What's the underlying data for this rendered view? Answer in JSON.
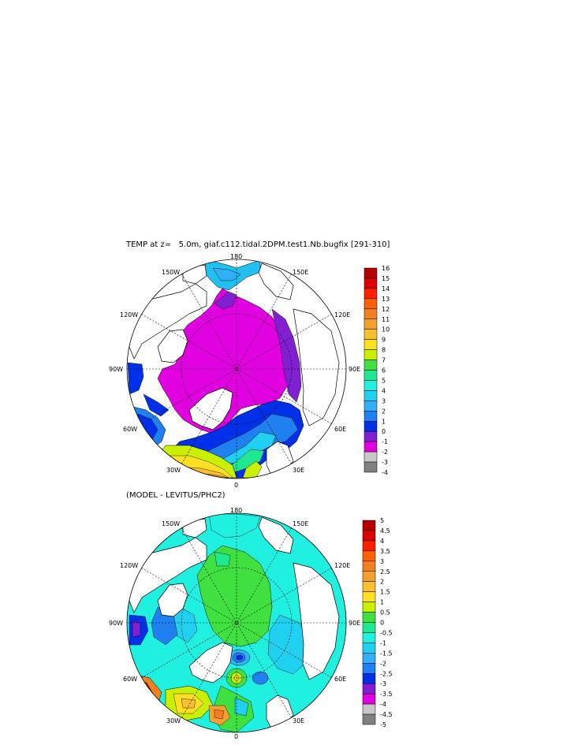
{
  "map1": {
    "title": "TEMP at z=   5.0m, giaf.c112.tidal.2DPM.test1.Nb.bugfix [291-310]",
    "lon_labels": {
      "top": "180",
      "tl": "150W",
      "tr": "150E",
      "l1": "120W",
      "r1": "120E",
      "l2": "90W",
      "r2": "90E",
      "l3": "60W",
      "r3": "60E",
      "bl": "30W",
      "br": "30E",
      "bottom": "0"
    },
    "colorbar": {
      "labels": [
        "16",
        "15",
        "14",
        "13",
        "12",
        "11",
        "10",
        "9",
        "8",
        "7",
        "6",
        "5",
        "4",
        "3",
        "2",
        "1",
        "0",
        "-1",
        "-2",
        "-3",
        "-4"
      ],
      "colors": [
        "#b40000",
        "#dc0000",
        "#ff2000",
        "#ff6000",
        "#f08020",
        "#f4a030",
        "#f8c030",
        "#ffe020",
        "#c8f000",
        "#40e040",
        "#20e890",
        "#20f0e0",
        "#20d0f0",
        "#30b0f8",
        "#2080f0",
        "#0030e8",
        "#8020d0",
        "#e000e0",
        "#c8c8c8",
        "#808080"
      ]
    }
  },
  "map2": {
    "title": "(MODEL - LEVITUS/PHC2)",
    "lon_labels": {
      "top": "180",
      "tl": "150W",
      "tr": "150E",
      "l1": "120W",
      "r1": "120E",
      "l2": "90W",
      "r2": "90E",
      "l3": "60W",
      "r3": "60E",
      "bl": "30W",
      "br": "30E",
      "bottom": "0"
    },
    "colorbar": {
      "labels": [
        "5",
        "4.5",
        "4",
        "3.5",
        "3",
        "2.5",
        "2",
        "1.5",
        "1",
        "0.5",
        "0",
        "-0.5",
        "-1",
        "-1.5",
        "-2",
        "-2.5",
        "-3",
        "-3.5",
        "-4",
        "-4.5",
        "-5"
      ],
      "colors": [
        "#b40000",
        "#dc0000",
        "#ff2000",
        "#ff6000",
        "#f08020",
        "#f4a030",
        "#f8c030",
        "#ffe020",
        "#c8f000",
        "#40e040",
        "#20e890",
        "#20f0e0",
        "#20d0f0",
        "#30b0f8",
        "#2080f0",
        "#0030e8",
        "#8020d0",
        "#e000e0",
        "#c8c8c8",
        "#808080"
      ]
    }
  }
}
